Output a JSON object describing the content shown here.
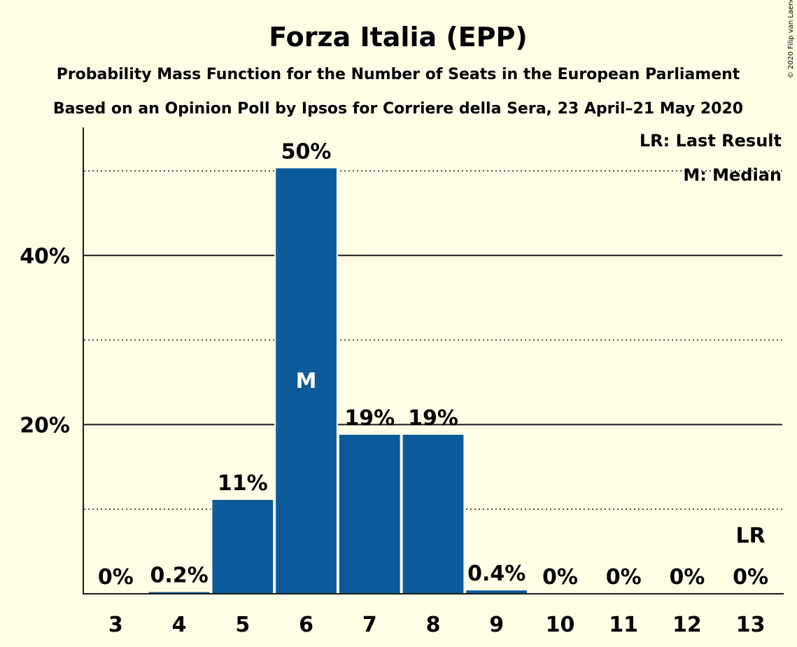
{
  "chart_data": {
    "type": "bar",
    "title": "Forza Italia (EPP)",
    "subtitle1": "Probability Mass Function for the Number of Seats in the European Parliament",
    "subtitle2": "Based on an Opinion Poll by Ipsos for Corriere della Sera, 23 April–21 May 2020",
    "copyright": "© 2020 Filip van Laenen",
    "categories": [
      "3",
      "4",
      "5",
      "6",
      "7",
      "8",
      "9",
      "10",
      "11",
      "12",
      "13"
    ],
    "values": [
      0,
      0.2,
      11.1,
      50.3,
      18.8,
      18.8,
      0.4,
      0,
      0,
      0,
      0
    ],
    "data_labels": [
      "0%",
      "0.2%",
      "11%",
      "50%",
      "19%",
      "19%",
      "0.4%",
      "0%",
      "0%",
      "0%",
      "0%"
    ],
    "ylim": [
      0,
      55
    ],
    "y_ticks": [
      {
        "value": 20,
        "label": "20%"
      },
      {
        "value": 40,
        "label": "40%"
      }
    ],
    "y_minor_gridlines": [
      10,
      30,
      50
    ],
    "median_category": "6",
    "median_marker": "M",
    "last_result_category": "13",
    "last_result_marker": "LR",
    "legend": [
      "LR: Last Result",
      "M: Median"
    ],
    "legend_position": "top-right",
    "bar_color": "#0d5a9b",
    "background_color": "#fffde6"
  }
}
